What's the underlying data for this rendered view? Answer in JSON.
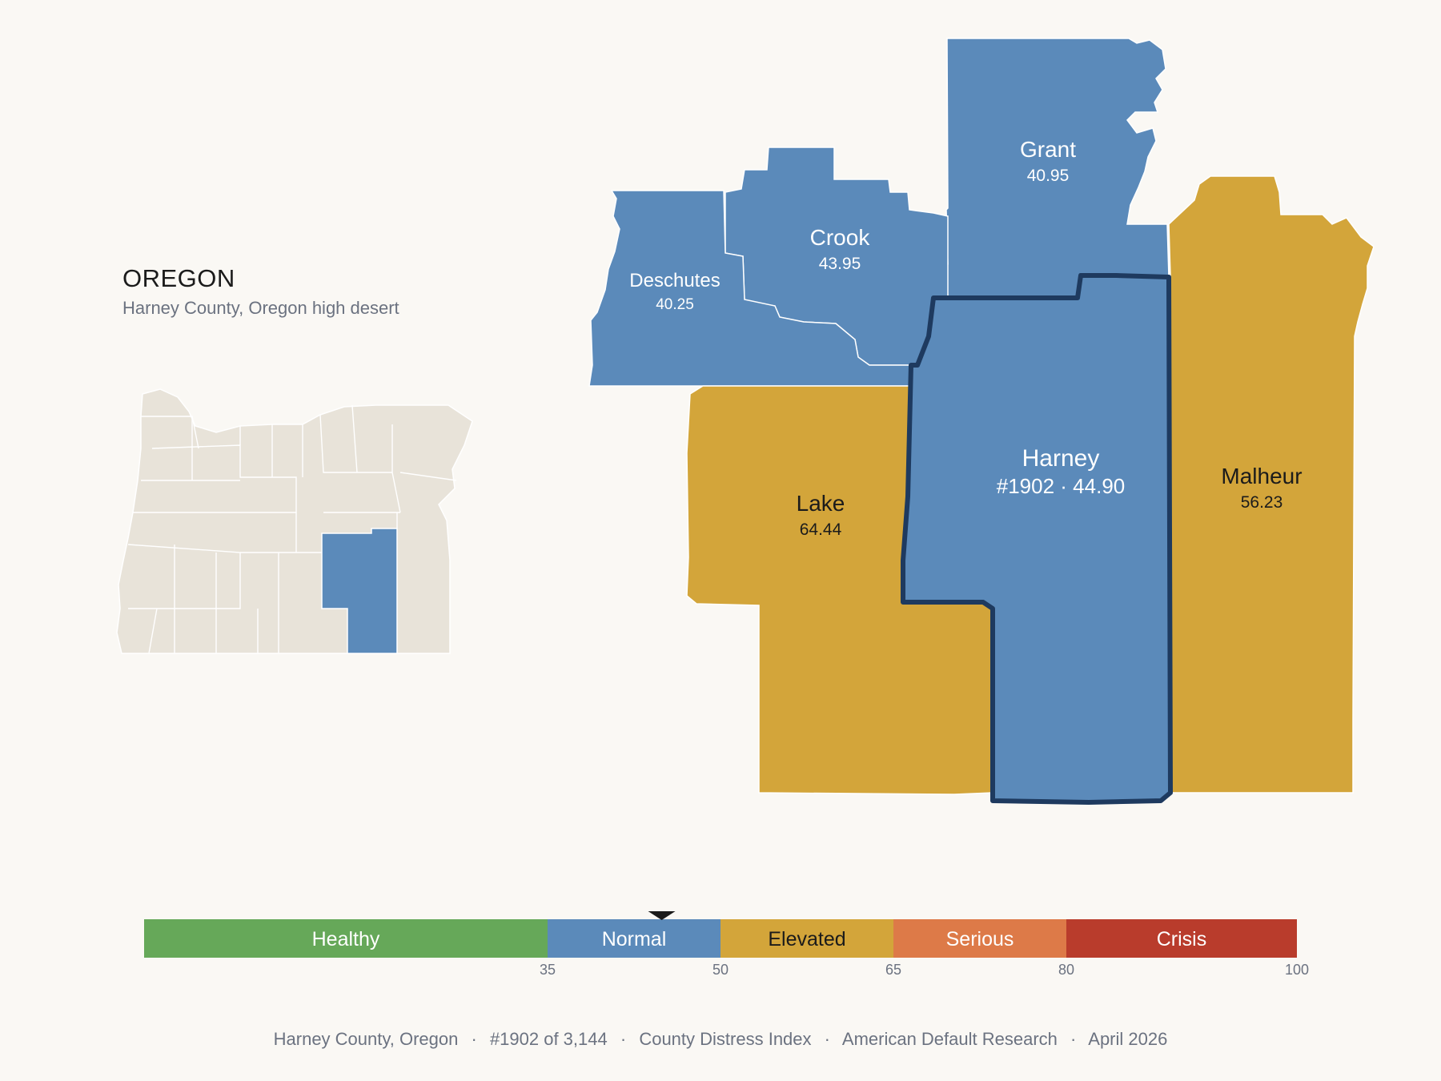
{
  "state": {
    "title": "OREGON",
    "subtitle": "Harney County, Oregon high desert"
  },
  "colors": {
    "background": "#faf8f4",
    "normal": "#5b8aba",
    "elevated": "#d3a53a",
    "healthy": "#66a859",
    "serious": "#dd7a48",
    "crisis": "#b93c2c",
    "inset_land": "#e8e3d9",
    "highlight_border": "#1e3a5f"
  },
  "counties": [
    {
      "id": "grant",
      "name": "Grant",
      "value": "40.95",
      "category": "normal"
    },
    {
      "id": "crook",
      "name": "Crook",
      "value": "43.95",
      "category": "normal"
    },
    {
      "id": "deschutes",
      "name": "Deschutes",
      "value": "40.25",
      "category": "normal"
    },
    {
      "id": "lake",
      "name": "Lake",
      "value": "64.44",
      "category": "elevated"
    },
    {
      "id": "harney",
      "name": "Harney",
      "value": "#1902 · 44.90",
      "category": "normal",
      "highlighted": true
    },
    {
      "id": "malheur",
      "name": "Malheur",
      "value": "56.23",
      "category": "elevated"
    }
  ],
  "scale": {
    "min": 0,
    "max": 100,
    "marker_value": 44.9,
    "bands": [
      {
        "label": "Healthy",
        "from": 0,
        "to": 35,
        "color": "#66a859"
      },
      {
        "label": "Normal",
        "from": 35,
        "to": 50,
        "color": "#5b8aba"
      },
      {
        "label": "Elevated",
        "from": 50,
        "to": 65,
        "color": "#d3a53a"
      },
      {
        "label": "Serious",
        "from": 65,
        "to": 80,
        "color": "#dd7a48"
      },
      {
        "label": "Crisis",
        "from": 80,
        "to": 100,
        "color": "#b93c2c"
      }
    ],
    "tick_labels": [
      "35",
      "50",
      "65",
      "80",
      "100"
    ]
  },
  "footer": {
    "parts": [
      "Harney County, Oregon",
      "#1902 of 3,144",
      "County Distress Index",
      "American Default Research",
      "April 2026"
    ],
    "separator": "·"
  }
}
